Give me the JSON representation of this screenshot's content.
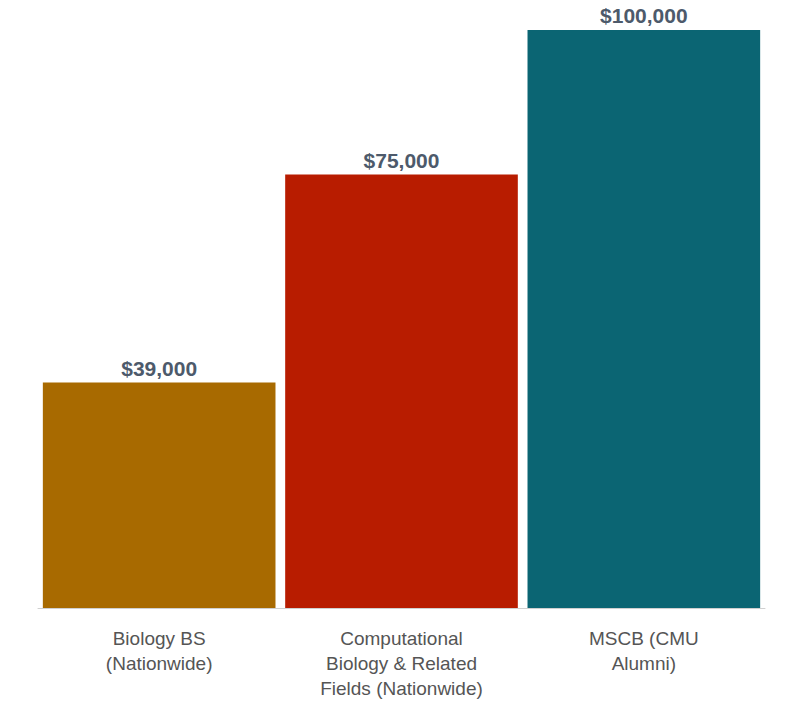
{
  "chart_data": {
    "type": "bar",
    "categories": [
      "Biology BS\n(Nationwide)",
      "Computational\nBiology & Related\nFields (Nationwide)",
      "MSCB (CMU\nAlumni)"
    ],
    "values": [
      39000,
      75000,
      100000
    ],
    "value_labels": [
      "$39,000",
      "$75,000",
      "$100,000"
    ],
    "colors": [
      "#a86a00",
      "#b81c00",
      "#0b6573"
    ],
    "ylim": [
      0,
      100000
    ],
    "grid": false,
    "data_labels": true,
    "tick_labels": "x"
  }
}
